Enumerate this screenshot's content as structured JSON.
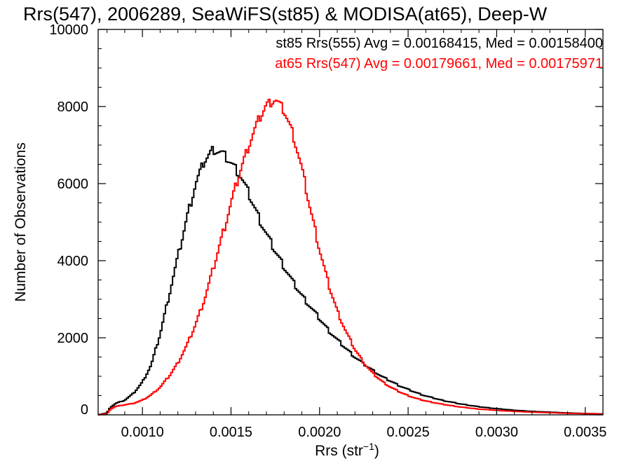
{
  "chart_data": {
    "type": "histogram",
    "title": "Rrs(547), 2006289, SeaWiFS(st85) & MODISA(at65), Deep-W",
    "xlabel": "Rrs (str",
    "xlabel_sup": "−1",
    "xlabel_close": ")",
    "ylabel": "Number of Observations",
    "xlim": [
      0.00075,
      0.0036
    ],
    "ylim": [
      0,
      10000
    ],
    "x_ticks": [
      0.001,
      0.0015,
      0.002,
      0.0025,
      0.003,
      0.0035
    ],
    "x_tick_labels": [
      "0.0010",
      "0.0015",
      "0.0020",
      "0.0025",
      "0.0030",
      "0.0035"
    ],
    "y_ticks": [
      0,
      2000,
      4000,
      6000,
      8000,
      10000
    ],
    "y_tick_labels": [
      "0",
      "2000",
      "4000",
      "6000",
      "8000",
      "10000"
    ],
    "legend_position": "top-right",
    "legend": [
      {
        "text": "st85 Rrs(555) Avg = 0.00168415, Med = 0.00158400",
        "color": "#000000"
      },
      {
        "text": "at65 Rrs(547) Avg = 0.00179661, Med = 0.00175971",
        "color": "#ff0000"
      }
    ],
    "series": [
      {
        "name": "st85 Rrs(555)",
        "color": "#000000",
        "points": [
          [
            0.00075,
            0
          ],
          [
            0.0008,
            50
          ],
          [
            0.00082,
            200
          ],
          [
            0.00085,
            300
          ],
          [
            0.0009,
            380
          ],
          [
            0.00095,
            560
          ],
          [
            0.001,
            850
          ],
          [
            0.00105,
            1300
          ],
          [
            0.0011,
            2100
          ],
          [
            0.00115,
            3100
          ],
          [
            0.0012,
            4100
          ],
          [
            0.00125,
            5100
          ],
          [
            0.0013,
            6000
          ],
          [
            0.00135,
            6600
          ],
          [
            0.0014,
            6900
          ],
          [
            0.00145,
            6800
          ],
          [
            0.0015,
            6550
          ],
          [
            0.00155,
            6250
          ],
          [
            0.0016,
            5750
          ],
          [
            0.00165,
            5200
          ],
          [
            0.0017,
            4700
          ],
          [
            0.00175,
            4250
          ],
          [
            0.0018,
            3850
          ],
          [
            0.00185,
            3450
          ],
          [
            0.0019,
            3100
          ],
          [
            0.00195,
            2800
          ],
          [
            0.002,
            2500
          ],
          [
            0.00205,
            2200
          ],
          [
            0.0021,
            1950
          ],
          [
            0.00215,
            1720
          ],
          [
            0.0022,
            1500
          ],
          [
            0.00225,
            1320
          ],
          [
            0.0023,
            1160
          ],
          [
            0.00235,
            1000
          ],
          [
            0.0024,
            880
          ],
          [
            0.00245,
            760
          ],
          [
            0.0025,
            660
          ],
          [
            0.00255,
            570
          ],
          [
            0.0026,
            490
          ],
          [
            0.0027,
            370
          ],
          [
            0.0028,
            280
          ],
          [
            0.0029,
            210
          ],
          [
            0.003,
            160
          ],
          [
            0.0031,
            120
          ],
          [
            0.0032,
            90
          ],
          [
            0.0033,
            70
          ],
          [
            0.0034,
            50
          ],
          [
            0.0035,
            35
          ],
          [
            0.0036,
            25
          ]
        ]
      },
      {
        "name": "at65 Rrs(547)",
        "color": "#ff0000",
        "points": [
          [
            0.00075,
            0
          ],
          [
            0.0008,
            30
          ],
          [
            0.00082,
            150
          ],
          [
            0.00085,
            220
          ],
          [
            0.0009,
            260
          ],
          [
            0.00095,
            300
          ],
          [
            0.001,
            380
          ],
          [
            0.00105,
            520
          ],
          [
            0.0011,
            720
          ],
          [
            0.00115,
            1000
          ],
          [
            0.0012,
            1350
          ],
          [
            0.00125,
            1800
          ],
          [
            0.0013,
            2350
          ],
          [
            0.00135,
            3000
          ],
          [
            0.0014,
            3800
          ],
          [
            0.00145,
            4650
          ],
          [
            0.0015,
            5500
          ],
          [
            0.00155,
            6300
          ],
          [
            0.0016,
            7000
          ],
          [
            0.00165,
            7600
          ],
          [
            0.0017,
            8050
          ],
          [
            0.00175,
            8200
          ],
          [
            0.0018,
            7900
          ],
          [
            0.00185,
            7300
          ],
          [
            0.0019,
            6400
          ],
          [
            0.00195,
            5300
          ],
          [
            0.002,
            4300
          ],
          [
            0.00205,
            3400
          ],
          [
            0.0021,
            2700
          ],
          [
            0.00215,
            2150
          ],
          [
            0.0022,
            1700
          ],
          [
            0.00225,
            1350
          ],
          [
            0.0023,
            1080
          ],
          [
            0.00235,
            880
          ],
          [
            0.0024,
            720
          ],
          [
            0.00245,
            600
          ],
          [
            0.0025,
            500
          ],
          [
            0.00255,
            420
          ],
          [
            0.0026,
            360
          ],
          [
            0.0027,
            270
          ],
          [
            0.0028,
            200
          ],
          [
            0.0029,
            150
          ],
          [
            0.003,
            115
          ],
          [
            0.0031,
            90
          ],
          [
            0.0032,
            70
          ],
          [
            0.0033,
            55
          ],
          [
            0.0034,
            40
          ],
          [
            0.0035,
            30
          ],
          [
            0.0036,
            20
          ]
        ]
      }
    ]
  }
}
